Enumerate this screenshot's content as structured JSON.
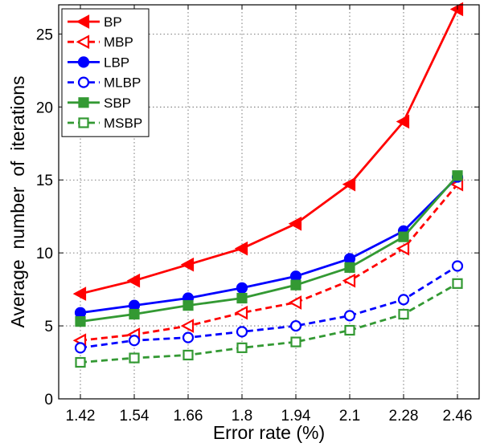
{
  "chart_data": {
    "type": "line",
    "xlabel": "Error rate (%)",
    "ylabel": "Average  number  of  iterations",
    "x": [
      1.42,
      1.54,
      1.66,
      1.8,
      1.94,
      2.1,
      2.28,
      2.46
    ],
    "x_tick_labels": [
      "1.42",
      "1.54",
      "1.66",
      "1.8",
      "1.94",
      "2.1",
      "2.28",
      "2.46"
    ],
    "x_scale": "categorical-equal-spacing",
    "ylim": [
      0,
      27
    ],
    "y_ticks": [
      0,
      5,
      10,
      15,
      20,
      25
    ],
    "grid": true,
    "legend_position": "top-left",
    "series": [
      {
        "name": "BP",
        "color": "#ff0000",
        "line": "solid",
        "marker": "triangle-left",
        "filled": true,
        "values": [
          7.2,
          8.1,
          9.2,
          10.3,
          12.0,
          14.7,
          19.0,
          26.7
        ]
      },
      {
        "name": "MBP",
        "color": "#ff0000",
        "line": "dashed",
        "marker": "triangle-left",
        "filled": false,
        "values": [
          4.0,
          4.4,
          5.0,
          5.9,
          6.6,
          8.1,
          10.3,
          14.7
        ]
      },
      {
        "name": "LBP",
        "color": "#0000ff",
        "line": "solid",
        "marker": "circle",
        "filled": true,
        "values": [
          5.9,
          6.4,
          6.9,
          7.6,
          8.4,
          9.6,
          11.5,
          15.2
        ]
      },
      {
        "name": "MLBP",
        "color": "#0000ff",
        "line": "dashed",
        "marker": "circle",
        "filled": false,
        "values": [
          3.5,
          4.0,
          4.2,
          4.6,
          5.0,
          5.7,
          6.8,
          9.1
        ]
      },
      {
        "name": "SBP",
        "color": "#339933",
        "line": "solid",
        "marker": "square",
        "filled": true,
        "values": [
          5.3,
          5.8,
          6.4,
          6.9,
          7.8,
          9.0,
          11.1,
          15.3
        ]
      },
      {
        "name": "MSBP",
        "color": "#339933",
        "line": "dashed",
        "marker": "square",
        "filled": false,
        "values": [
          2.5,
          2.8,
          3.0,
          3.5,
          3.9,
          4.7,
          5.8,
          7.9
        ]
      }
    ]
  }
}
